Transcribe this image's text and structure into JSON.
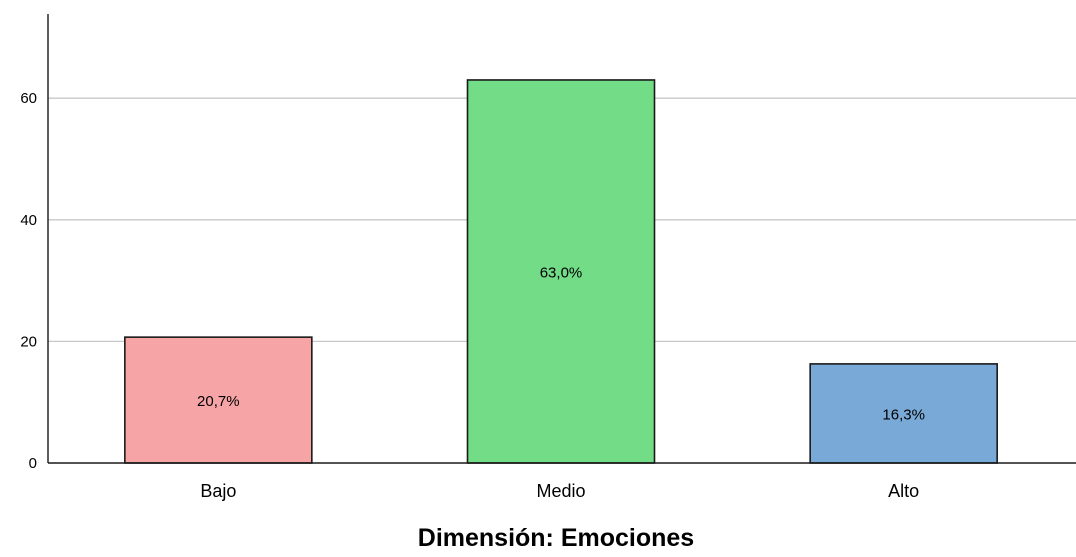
{
  "chart_data": {
    "type": "bar",
    "title": "",
    "xlabel": "Dimensión: Emociones",
    "ylabel": "",
    "categories": [
      "Bajo",
      "Medio",
      "Alto"
    ],
    "values": [
      20.7,
      63.0,
      16.3
    ],
    "data_labels": [
      "20,7%",
      "63,0%",
      "16,3%"
    ],
    "colors": [
      "#f7a4a6",
      "#72dc86",
      "#79a9d6"
    ],
    "ylim": [
      0,
      73
    ],
    "yticks": [
      0,
      20,
      40,
      60
    ],
    "ytick_labels": [
      "0",
      "20",
      "40",
      "60"
    ],
    "grid": true,
    "legend": "none"
  }
}
